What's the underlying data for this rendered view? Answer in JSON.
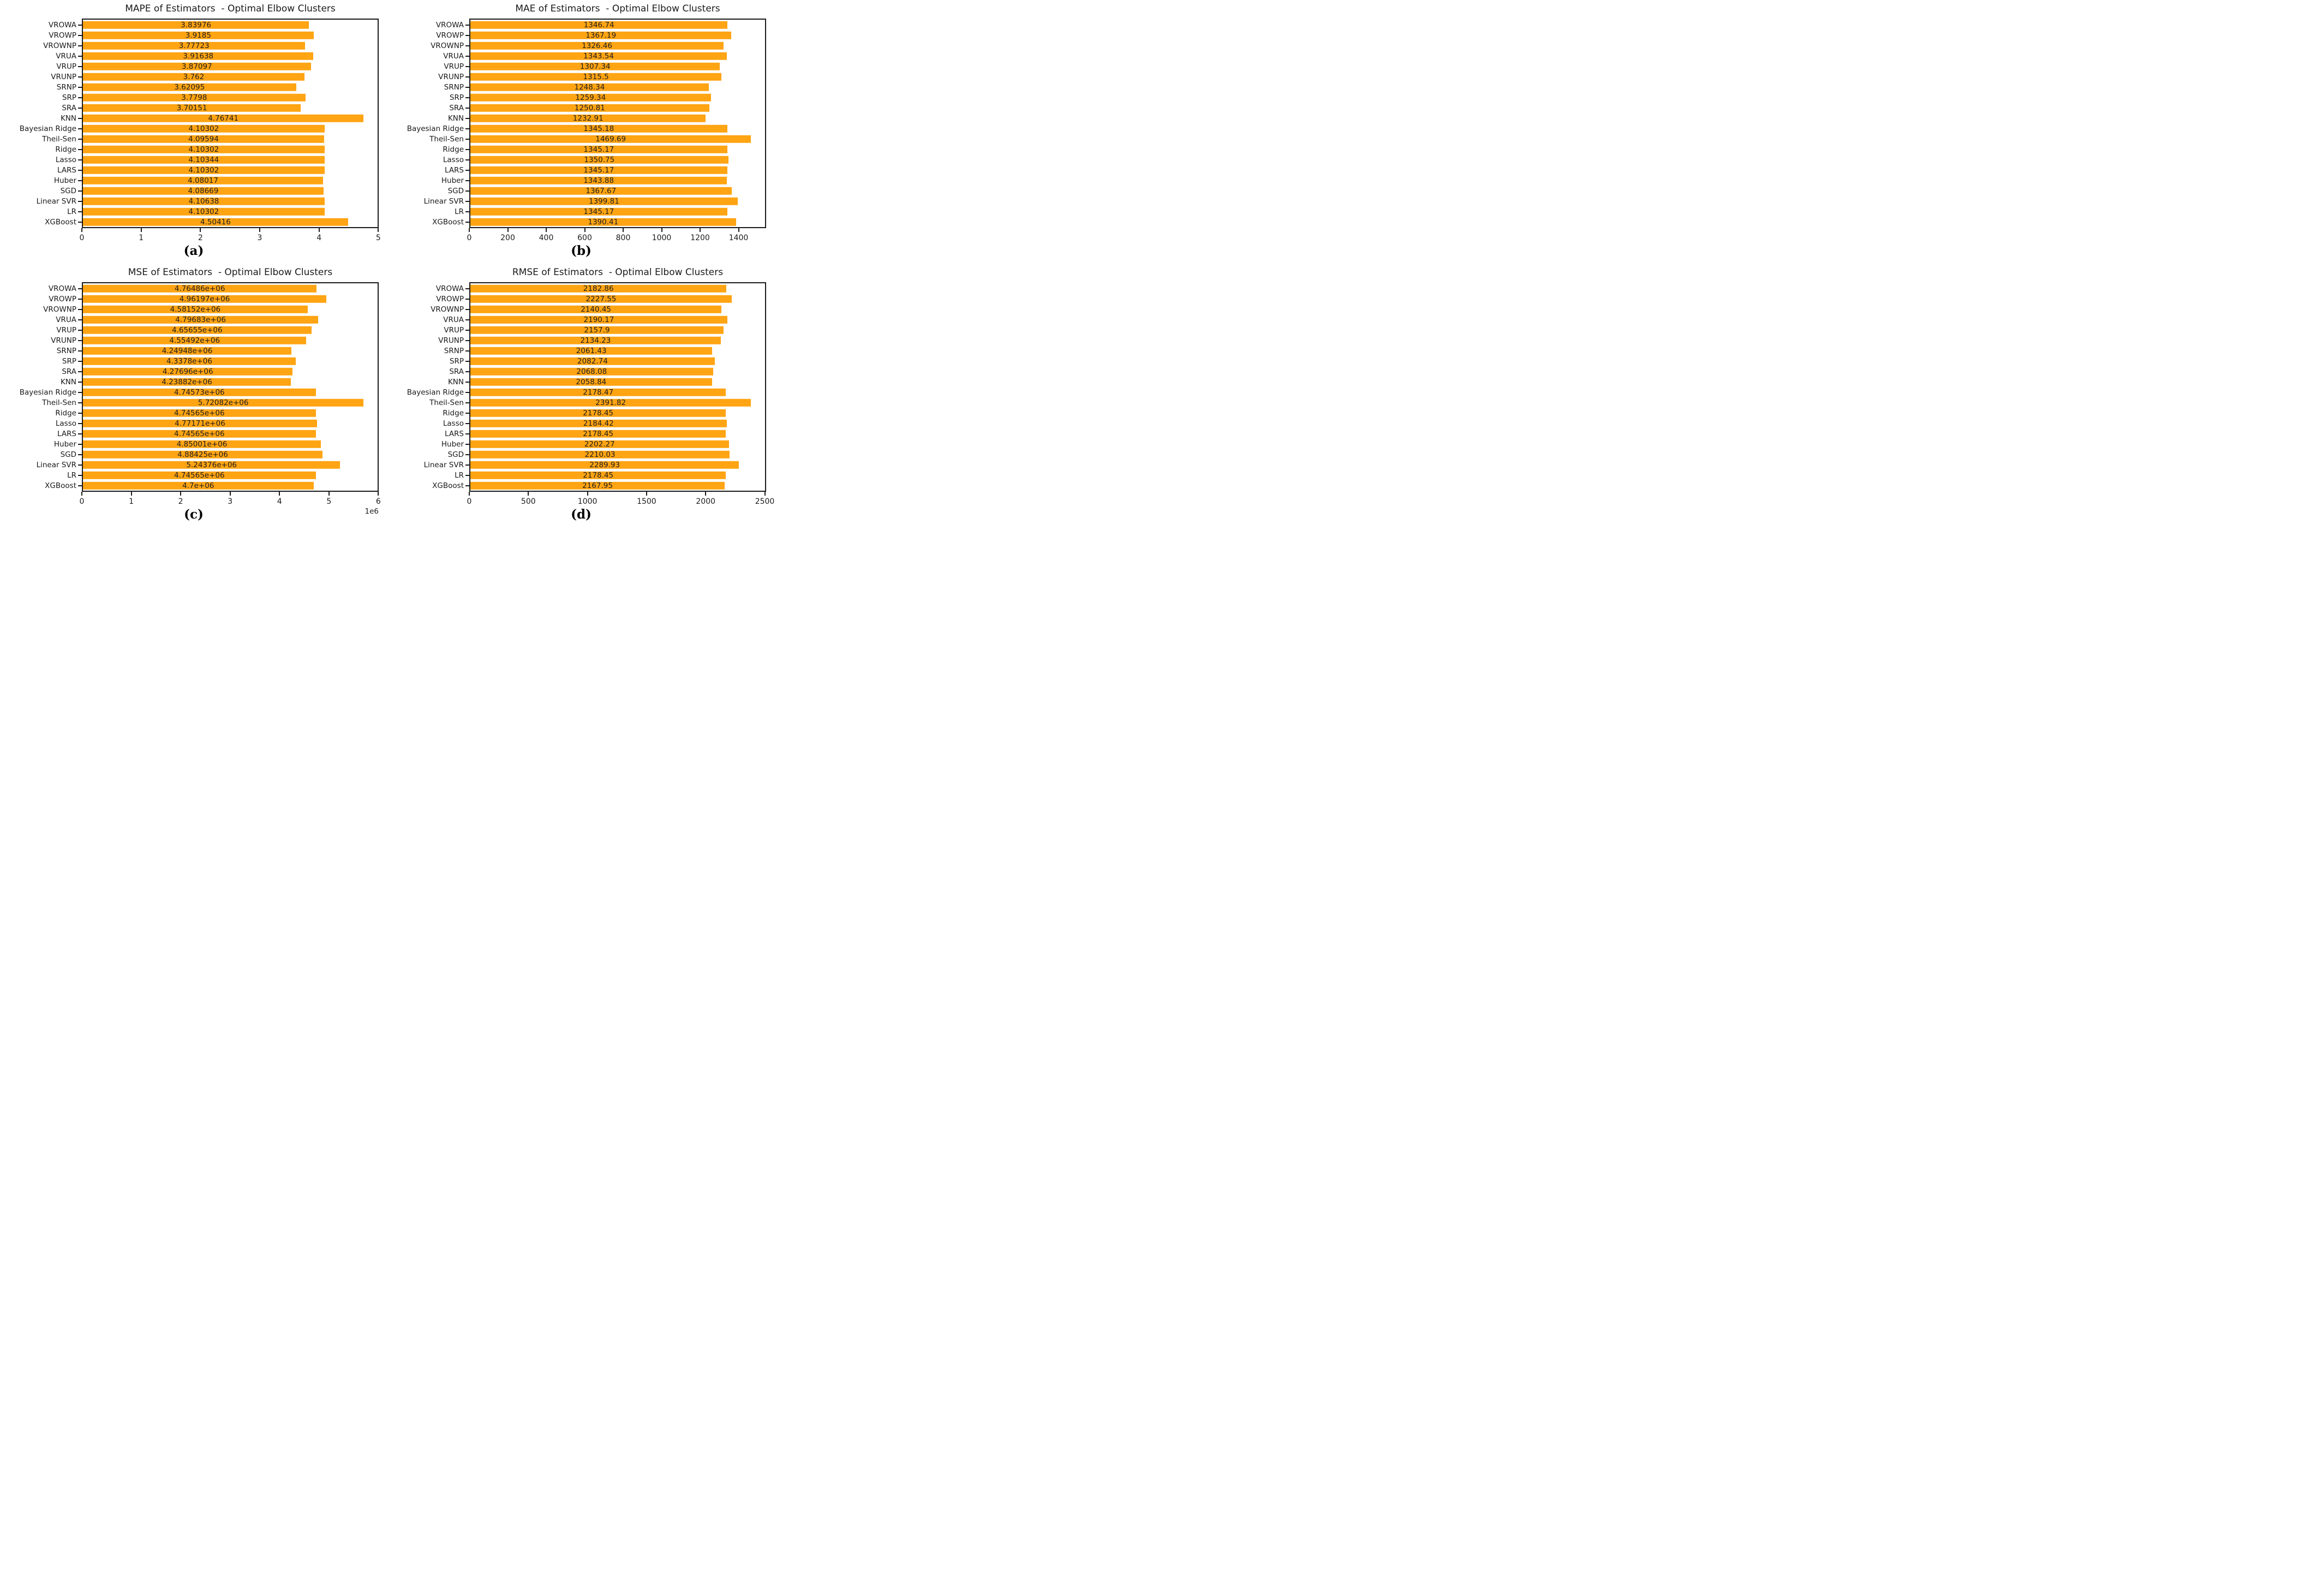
{
  "figure": {
    "bar_color": "#FFA413",
    "text_color": "#1a1a1a",
    "background_color": "#ffffff"
  },
  "categories": [
    "VROWA",
    "VROWP",
    "VROWNP",
    "VRUA",
    "VRUP",
    "VRUNP",
    "SRNP",
    "SRP",
    "SRA",
    "KNN",
    "Bayesian Ridge",
    "Theil-Sen",
    "Ridge",
    "Lasso",
    "LARS",
    "Huber",
    "SGD",
    "Linear SVR",
    "LR",
    "XGBoost"
  ],
  "chart_data": [
    {
      "type": "bar",
      "orientation": "horizontal",
      "title": "MAPE of Estimators  - Optimal Elbow Clusters",
      "caption": "(a)",
      "grid": false,
      "legend": null,
      "xlim": [
        0,
        5.0058
      ],
      "categories": [
        "VROWA",
        "VROWP",
        "VROWNP",
        "VRUA",
        "VRUP",
        "VRUNP",
        "SRNP",
        "SRP",
        "SRA",
        "KNN",
        "Bayesian Ridge",
        "Theil-Sen",
        "Ridge",
        "Lasso",
        "LARS",
        "Huber",
        "SGD",
        "Linear SVR",
        "LR",
        "XGBoost"
      ],
      "values": [
        3.83976,
        3.9185,
        3.77723,
        3.91638,
        3.87097,
        3.762,
        3.62095,
        3.7798,
        3.70151,
        4.76741,
        4.10302,
        4.09594,
        4.10302,
        4.10344,
        4.10302,
        4.08017,
        4.08669,
        4.10638,
        4.10302,
        4.50416
      ],
      "value_labels": [
        "3.83976",
        "3.9185",
        "3.77723",
        "3.91638",
        "3.87097",
        "3.762",
        "3.62095",
        "3.7798",
        "3.70151",
        "4.76741",
        "4.10302",
        "4.09594",
        "4.10302",
        "4.10344",
        "4.10302",
        "4.08017",
        "4.08669",
        "4.10638",
        "4.10302",
        "4.50416"
      ],
      "ticks": [
        {
          "v": 0,
          "label": "0"
        },
        {
          "v": 1,
          "label": "1"
        },
        {
          "v": 2,
          "label": "2"
        },
        {
          "v": 3,
          "label": "3"
        },
        {
          "v": 4,
          "label": "4"
        },
        {
          "v": 5,
          "label": "5"
        }
      ],
      "offset_label": ""
    },
    {
      "type": "bar",
      "orientation": "horizontal",
      "title": "MAE of Estimators  - Optimal Elbow Clusters",
      "caption": "(b)",
      "grid": false,
      "legend": null,
      "xlim": [
        0,
        1543.17
      ],
      "categories": [
        "VROWA",
        "VROWP",
        "VROWNP",
        "VRUA",
        "VRUP",
        "VRUNP",
        "SRNP",
        "SRP",
        "SRA",
        "KNN",
        "Bayesian Ridge",
        "Theil-Sen",
        "Ridge",
        "Lasso",
        "LARS",
        "Huber",
        "SGD",
        "Linear SVR",
        "LR",
        "XGBoost"
      ],
      "values": [
        1346.74,
        1367.19,
        1326.46,
        1343.54,
        1307.34,
        1315.5,
        1248.34,
        1259.34,
        1250.81,
        1232.91,
        1345.18,
        1469.69,
        1345.17,
        1350.75,
        1345.17,
        1343.88,
        1367.67,
        1399.81,
        1345.17,
        1390.41
      ],
      "value_labels": [
        "1346.74",
        "1367.19",
        "1326.46",
        "1343.54",
        "1307.34",
        "1315.5",
        "1248.34",
        "1259.34",
        "1250.81",
        "1232.91",
        "1345.18",
        "1469.69",
        "1345.17",
        "1350.75",
        "1345.17",
        "1343.88",
        "1367.67",
        "1399.81",
        "1345.17",
        "1390.41"
      ],
      "ticks": [
        {
          "v": 0,
          "label": "0"
        },
        {
          "v": 200,
          "label": "200"
        },
        {
          "v": 400,
          "label": "400"
        },
        {
          "v": 600,
          "label": "600"
        },
        {
          "v": 800,
          "label": "800"
        },
        {
          "v": 1000,
          "label": "1000"
        },
        {
          "v": 1200,
          "label": "1200"
        },
        {
          "v": 1400,
          "label": "1400"
        }
      ],
      "offset_label": ""
    },
    {
      "type": "bar",
      "orientation": "horizontal",
      "title": "MSE of Estimators  - Optimal Elbow Clusters",
      "caption": "(c)",
      "grid": false,
      "legend": null,
      "xlim": [
        0,
        6006861
      ],
      "categories": [
        "VROWA",
        "VROWP",
        "VROWNP",
        "VRUA",
        "VRUP",
        "VRUNP",
        "SRNP",
        "SRP",
        "SRA",
        "KNN",
        "Bayesian Ridge",
        "Theil-Sen",
        "Ridge",
        "Lasso",
        "LARS",
        "Huber",
        "SGD",
        "Linear SVR",
        "LR",
        "XGBoost"
      ],
      "values": [
        4764860,
        4961970,
        4581520,
        4796830,
        4656550,
        4554920,
        4249480,
        4337800,
        4276960,
        4238820,
        4745730,
        5720820,
        4745650,
        4771710,
        4745650,
        4850010,
        4884250,
        5243760,
        4745650,
        4700000
      ],
      "value_labels": [
        "4.76486e+06",
        "4.96197e+06",
        "4.58152e+06",
        "4.79683e+06",
        "4.65655e+06",
        "4.55492e+06",
        "4.24948e+06",
        "4.3378e+06",
        "4.27696e+06",
        "4.23882e+06",
        "4.74573e+06",
        "5.72082e+06",
        "4.74565e+06",
        "4.77171e+06",
        "4.74565e+06",
        "4.85001e+06",
        "4.88425e+06",
        "5.24376e+06",
        "4.74565e+06",
        "4.7e+06"
      ],
      "ticks": [
        {
          "v": 0,
          "label": "0"
        },
        {
          "v": 1000000,
          "label": "1"
        },
        {
          "v": 2000000,
          "label": "2"
        },
        {
          "v": 3000000,
          "label": "3"
        },
        {
          "v": 4000000,
          "label": "4"
        },
        {
          "v": 5000000,
          "label": "5"
        },
        {
          "v": 6000000,
          "label": "6"
        }
      ],
      "offset_label": "1e6"
    },
    {
      "type": "bar",
      "orientation": "horizontal",
      "title": "RMSE of Estimators  - Optimal Elbow Clusters",
      "caption": "(d)",
      "grid": false,
      "legend": null,
      "xlim": [
        0,
        2511.41
      ],
      "categories": [
        "VROWA",
        "VROWP",
        "VROWNP",
        "VRUA",
        "VRUP",
        "VRUNP",
        "SRNP",
        "SRP",
        "SRA",
        "KNN",
        "Bayesian Ridge",
        "Theil-Sen",
        "Ridge",
        "Lasso",
        "LARS",
        "Huber",
        "SGD",
        "Linear SVR",
        "LR",
        "XGBoost"
      ],
      "values": [
        2182.86,
        2227.55,
        2140.45,
        2190.17,
        2157.9,
        2134.23,
        2061.43,
        2082.74,
        2068.08,
        2058.84,
        2178.47,
        2391.82,
        2178.45,
        2184.42,
        2178.45,
        2202.27,
        2210.03,
        2289.93,
        2178.45,
        2167.95
      ],
      "value_labels": [
        "2182.86",
        "2227.55",
        "2140.45",
        "2190.17",
        "2157.9",
        "2134.23",
        "2061.43",
        "2082.74",
        "2068.08",
        "2058.84",
        "2178.47",
        "2391.82",
        "2178.45",
        "2184.42",
        "2178.45",
        "2202.27",
        "2210.03",
        "2289.93",
        "2178.45",
        "2167.95"
      ],
      "ticks": [
        {
          "v": 0,
          "label": "0"
        },
        {
          "v": 500,
          "label": "500"
        },
        {
          "v": 1000,
          "label": "1000"
        },
        {
          "v": 1500,
          "label": "1500"
        },
        {
          "v": 2000,
          "label": "2000"
        },
        {
          "v": 2500,
          "label": "2500"
        }
      ],
      "offset_label": ""
    }
  ]
}
